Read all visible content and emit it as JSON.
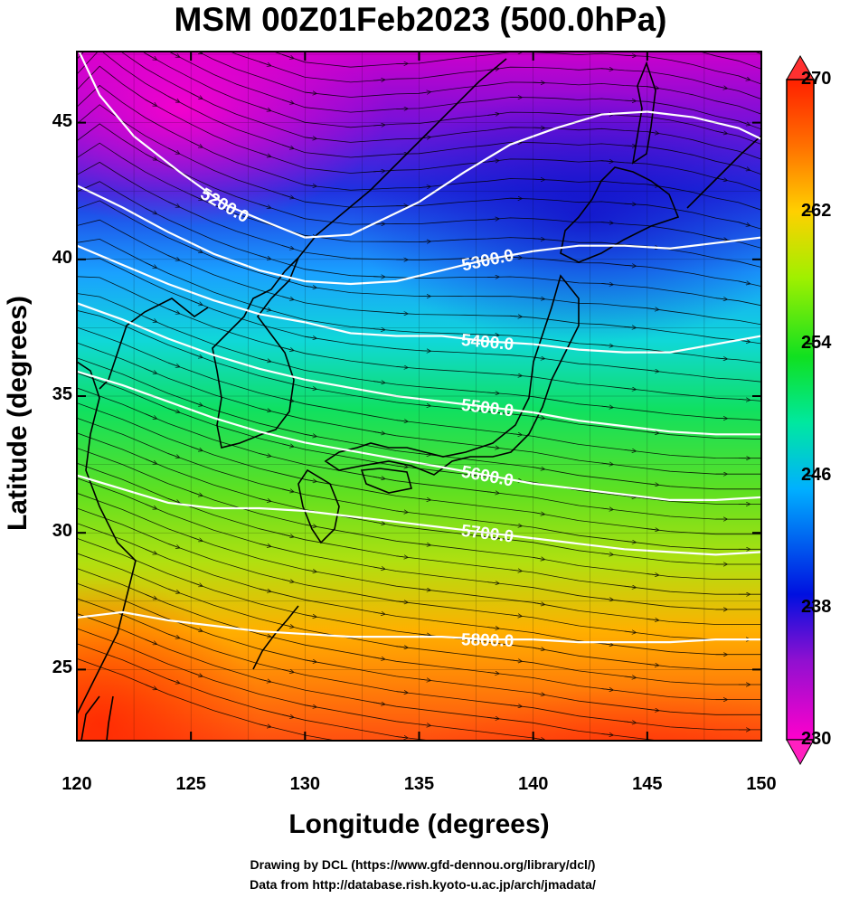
{
  "title": "MSM 00Z01Feb2023 (500.0hPa)",
  "x_axis": {
    "label": "Longitude (degrees)",
    "ticks": [
      "120",
      "125",
      "130",
      "135",
      "140",
      "145",
      "150"
    ],
    "range": [
      120,
      150
    ]
  },
  "y_axis": {
    "label": "Latitude  (degrees)",
    "ticks": [
      "25",
      "30",
      "35",
      "40",
      "45"
    ],
    "range": [
      22.4,
      47.6
    ]
  },
  "colorbar": {
    "ticks": [
      "230",
      "238",
      "246",
      "254",
      "262",
      "270"
    ],
    "range": [
      230,
      270
    ],
    "colors": [
      "#ff00cc",
      "#8800cc",
      "#0000dd",
      "#00aaff",
      "#00ff88",
      "#88ff00",
      "#ffee00",
      "#ff8800",
      "#ff2200"
    ]
  },
  "contours": [
    {
      "label": "5200.0",
      "points": [
        [
          120.1,
          47.6
        ],
        [
          121,
          46
        ],
        [
          122.5,
          44.5
        ],
        [
          124.5,
          43.2
        ],
        [
          126.5,
          42
        ],
        [
          128.5,
          41.3
        ],
        [
          130,
          40.8
        ],
        [
          132,
          40.9
        ],
        [
          133.5,
          41.5
        ],
        [
          135,
          42.1
        ],
        [
          137,
          43.2
        ],
        [
          139,
          44.2
        ],
        [
          141,
          44.8
        ],
        [
          143,
          45.3
        ],
        [
          145,
          45.4
        ],
        [
          147,
          45.2
        ],
        [
          149,
          44.8
        ],
        [
          150,
          44.4
        ]
      ]
    },
    {
      "label": "5300.0",
      "points": [
        [
          120,
          42.7
        ],
        [
          122,
          41.9
        ],
        [
          124,
          41
        ],
        [
          126,
          40.2
        ],
        [
          128,
          39.6
        ],
        [
          130,
          39.2
        ],
        [
          132,
          39.1
        ],
        [
          134,
          39.2
        ],
        [
          136,
          39.6
        ],
        [
          138,
          40
        ],
        [
          140,
          40.3
        ],
        [
          142,
          40.5
        ],
        [
          144,
          40.5
        ],
        [
          146,
          40.4
        ],
        [
          148,
          40.6
        ],
        [
          150,
          40.8
        ]
      ]
    },
    {
      "label": "5400.0",
      "points": [
        [
          120,
          40.5
        ],
        [
          122,
          39.8
        ],
        [
          124,
          39.1
        ],
        [
          126,
          38.5
        ],
        [
          128,
          38
        ],
        [
          130,
          37.7
        ],
        [
          132,
          37.3
        ],
        [
          134,
          37.2
        ],
        [
          136,
          37.2
        ],
        [
          138,
          37
        ],
        [
          140,
          36.9
        ],
        [
          142,
          36.7
        ],
        [
          144,
          36.6
        ],
        [
          146,
          36.6
        ],
        [
          148,
          36.9
        ],
        [
          150,
          37.2
        ]
      ]
    },
    {
      "label": "5500.0",
      "points": [
        [
          120,
          38.4
        ],
        [
          122,
          37.8
        ],
        [
          124,
          37.1
        ],
        [
          126,
          36.5
        ],
        [
          128,
          36
        ],
        [
          130,
          35.6
        ],
        [
          132,
          35.3
        ],
        [
          134,
          35
        ],
        [
          136,
          34.8
        ],
        [
          138,
          34.6
        ],
        [
          140,
          34.4
        ],
        [
          142,
          34.1
        ],
        [
          144,
          33.9
        ],
        [
          146,
          33.7
        ],
        [
          148,
          33.6
        ],
        [
          150,
          33.6
        ]
      ]
    },
    {
      "label": "5600.0",
      "points": [
        [
          120,
          35.9
        ],
        [
          122,
          35.4
        ],
        [
          124,
          34.8
        ],
        [
          126,
          34.2
        ],
        [
          128,
          33.7
        ],
        [
          130,
          33.3
        ],
        [
          132,
          33
        ],
        [
          134,
          32.7
        ],
        [
          136,
          32.4
        ],
        [
          138,
          32.1
        ],
        [
          140,
          31.8
        ],
        [
          142,
          31.6
        ],
        [
          144,
          31.4
        ],
        [
          146,
          31.2
        ],
        [
          148,
          31.2
        ],
        [
          150,
          31.3
        ]
      ]
    },
    {
      "label": "5700.0",
      "points": [
        [
          120,
          32.1
        ],
        [
          122,
          31.6
        ],
        [
          124,
          31.1
        ],
        [
          126,
          30.9
        ],
        [
          128,
          30.9
        ],
        [
          130,
          30.8
        ],
        [
          132,
          30.6
        ],
        [
          134,
          30.4
        ],
        [
          136,
          30.2
        ],
        [
          138,
          30
        ],
        [
          140,
          29.8
        ],
        [
          142,
          29.6
        ],
        [
          144,
          29.4
        ],
        [
          146,
          29.3
        ],
        [
          148,
          29.2
        ],
        [
          150,
          29.3
        ]
      ]
    },
    {
      "label": "5800.0",
      "points": [
        [
          120,
          26.9
        ],
        [
          122,
          27.1
        ],
        [
          124,
          26.8
        ],
        [
          126,
          26.6
        ],
        [
          128,
          26.4
        ],
        [
          130,
          26.3
        ],
        [
          132,
          26.2
        ],
        [
          134,
          26.2
        ],
        [
          136,
          26.2
        ],
        [
          138,
          26.1
        ],
        [
          140,
          26.1
        ],
        [
          142,
          26
        ],
        [
          144,
          26
        ],
        [
          146,
          26
        ],
        [
          148,
          26.1
        ],
        [
          150,
          26.1
        ]
      ]
    }
  ],
  "credits": {
    "line1": "Drawing by DCL (https://www.gfd-dennou.org/library/dcl/)",
    "line2": "Data from http://database.rish.kyoto-u.ac.jp/arch/jmadata/"
  }
}
